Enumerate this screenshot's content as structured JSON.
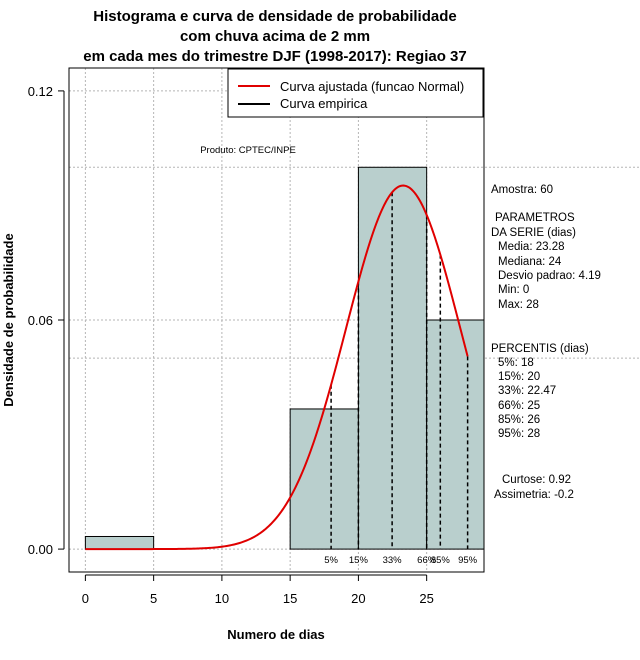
{
  "chart_data": {
    "type": "bar",
    "title_lines": [
      "Histograma e curva de densidade de probabilidade",
      "com chuva acima de 2 mm",
      "em cada mes do trimestre DJF (1998-2017): Regiao 37"
    ],
    "xlabel": "Numero de dias",
    "ylabel": "Densidade de probabilidade",
    "xlim": [
      -1.2,
      29.2
    ],
    "ylim": [
      -0.006,
      0.126
    ],
    "xticks": [
      0,
      5,
      10,
      15,
      20,
      25
    ],
    "yticks": [
      0.0,
      0.06,
      0.12
    ],
    "ytick_labels": [
      "0.00",
      "0.06",
      "0.12"
    ],
    "grid_x": [
      0,
      5,
      10,
      15,
      20,
      25
    ],
    "grid_y": [
      0.0,
      0.06,
      0.12
    ],
    "bins": [
      {
        "start": 0,
        "end": 5,
        "density": 0.0033
      },
      {
        "start": 5,
        "end": 10,
        "density": 0.0
      },
      {
        "start": 10,
        "end": 15,
        "density": 0.0
      },
      {
        "start": 15,
        "end": 20,
        "density": 0.0367
      },
      {
        "start": 20,
        "end": 25,
        "density": 0.1
      },
      {
        "start": 25,
        "end": 30,
        "density": 0.06
      }
    ],
    "bar_color": "#b9cfcd",
    "curve": {
      "name": "Curva ajustada (funcao Normal)",
      "distribution": "normal",
      "mean": 23.28,
      "sd": 4.19,
      "x_range": [
        0,
        28
      ],
      "color": "#e00000"
    },
    "empirical": {
      "name": "Curva empirica",
      "color": "#000000"
    },
    "percentiles": [
      {
        "label": "5%",
        "value": 18
      },
      {
        "label": "15%",
        "value": 20
      },
      {
        "label": "33%",
        "value": 22.47
      },
      {
        "label": "66%",
        "value": 25
      },
      {
        "label": "85%",
        "value": 26
      },
      {
        "label": "95%",
        "value": 28
      }
    ],
    "legend_position": "top-right"
  },
  "produto": "Produto: CPTEC/INPE",
  "side_panel": {
    "amostra": "Amostra: 60",
    "param_title_1": "PARAMETROS",
    "param_title_2": "DA SERIE (dias)",
    "media": "Media: 23.28",
    "mediana": "Mediana: 24",
    "desvio": "Desvio padrao: 4.19",
    "min": "Min: 0",
    "max": "Max: 28",
    "percentis_title": "PERCENTIS (dias)",
    "p5": "5%: 18",
    "p15": "15%: 20",
    "p33": "33%: 22.47",
    "p66": "66%: 25",
    "p85": "85%: 26",
    "p95": "95%: 28",
    "curtose": "Curtose: 0.92",
    "assimetria": "Assimetria: -0.2"
  }
}
